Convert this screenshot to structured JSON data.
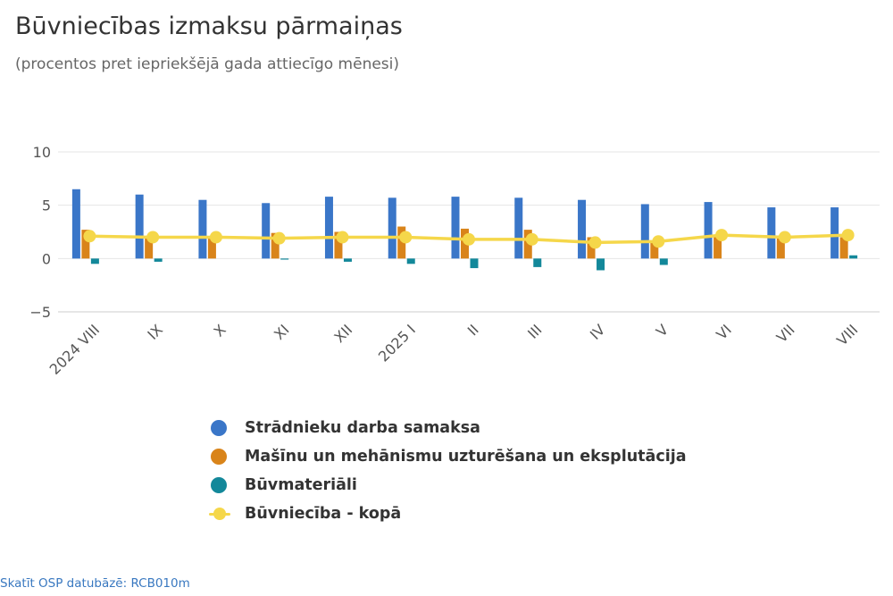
{
  "header": {
    "title": "Būvniecības izmaksu pārmaiņas",
    "subtitle": "(procentos pret iepriekšējā gada attiecīgo mēnesi)"
  },
  "source_link": "Skatīt OSP datubāzē: RCB010m",
  "colors": {
    "labour": "#3a76c8",
    "machinery": "#d9841a",
    "materials": "#13889a",
    "total": "#f5d74a",
    "grid": "#e6e6e6",
    "axis_text": "#555555"
  },
  "chart_data": {
    "type": "bar",
    "title": "Būvniecības izmaksu pārmaiņas",
    "subtitle": "(procentos pret iepriekšējā gada attiecīgo mēnesi)",
    "categories": [
      "2024 VIII",
      "IX",
      "X",
      "XI",
      "XII",
      "2025 I",
      "II",
      "III",
      "IV",
      "V",
      "VI",
      "VII",
      "VIII"
    ],
    "y_ticks": [
      "10",
      "5",
      "0",
      "−5"
    ],
    "ylim": [
      -5,
      10
    ],
    "grid": true,
    "legend_position": "bottom",
    "series": [
      {
        "name": "Strādnieku darba samaksa",
        "type": "bar",
        "color": "#3a76c8",
        "values": [
          6.5,
          6.0,
          5.5,
          5.2,
          5.8,
          5.7,
          5.8,
          5.7,
          5.5,
          5.1,
          5.3,
          4.8,
          4.8
        ]
      },
      {
        "name": "Mašīnu un mehānismu uzturēšana un eksplutācija",
        "type": "bar",
        "color": "#d9841a",
        "values": [
          2.7,
          2.0,
          2.0,
          2.4,
          2.5,
          3.0,
          2.8,
          2.7,
          2.0,
          1.7,
          2.1,
          1.9,
          2.0
        ]
      },
      {
        "name": "Būvmateriāli",
        "type": "bar",
        "color": "#13889a",
        "values": [
          -0.5,
          -0.3,
          0.0,
          -0.1,
          -0.3,
          -0.5,
          -0.9,
          -0.8,
          -1.1,
          -0.6,
          0.0,
          0.0,
          0.3
        ]
      },
      {
        "name": "Būvniecība - kopā",
        "type": "line",
        "color": "#f5d74a",
        "values": [
          2.1,
          2.0,
          2.0,
          1.9,
          2.0,
          2.0,
          1.8,
          1.8,
          1.5,
          1.6,
          2.2,
          2.0,
          2.2
        ]
      }
    ]
  },
  "legend": [
    {
      "label": "Strādnieku darba samaksa",
      "kind": "dot",
      "color": "#3a76c8"
    },
    {
      "label": "Mašīnu un mehānismu uzturēšana un eksplutācija",
      "kind": "dot",
      "color": "#d9841a"
    },
    {
      "label": "Būvmateriāli",
      "kind": "dot",
      "color": "#13889a"
    },
    {
      "label": "Būvniecība - kopā",
      "kind": "line",
      "color": "#f5d74a"
    }
  ]
}
